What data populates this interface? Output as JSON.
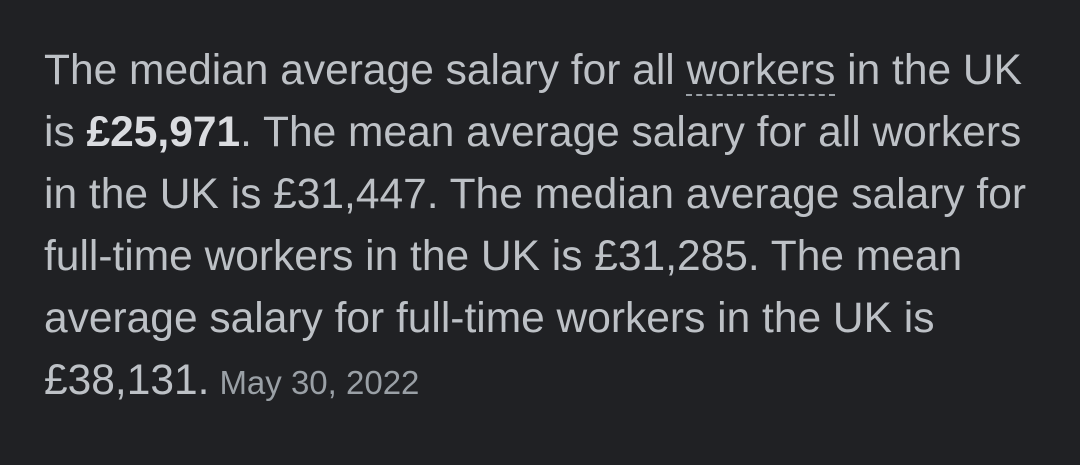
{
  "snippet": {
    "part1": "The median average salary for all ",
    "term": "workers",
    "part2": " in the UK is ",
    "highlight": "£25,971",
    "part3": ". The mean average salary for all workers in the UK is £31,447. The median average salary for full-time workers in the UK is £31,285. The mean average salary for full-time workers in the UK is £38,131.",
    "date": "May 30, 2022"
  },
  "colors": {
    "background": "#202124",
    "text": "#bdc1c6",
    "bold_text": "#dadce0",
    "date_text": "#9aa0a6"
  }
}
